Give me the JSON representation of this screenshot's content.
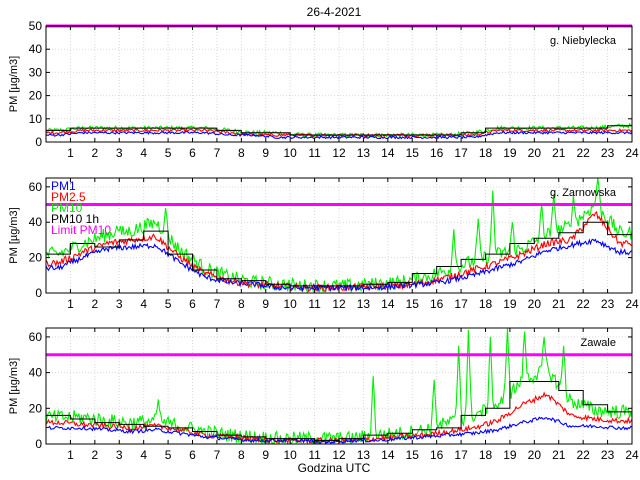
{
  "figure": {
    "title": "26-4-2021",
    "xlabel": "Godzina UTC"
  },
  "colors": {
    "pm1": "#0000ff",
    "pm25": "#ff0000",
    "pm10": "#00ee00",
    "pm10_1h": "#000000",
    "limit": "#ff00ff"
  },
  "chart_data": [
    {
      "type": "line",
      "station": "g. Niebylecka",
      "xlabel": "",
      "ylabel": "PM [µg/m3]",
      "xlim": [
        0,
        24
      ],
      "ylim": [
        0,
        50
      ],
      "xticks": [
        1,
        2,
        3,
        4,
        5,
        6,
        7,
        8,
        9,
        10,
        11,
        12,
        13,
        14,
        15,
        16,
        17,
        18,
        19,
        20,
        21,
        22,
        23,
        24
      ],
      "yticks": [
        0,
        10,
        20,
        30,
        40,
        50
      ],
      "grid": true,
      "legend": null,
      "limit_pm10": 50,
      "hours": [
        0.5,
        1.5,
        2.5,
        3.5,
        4.5,
        5.5,
        6.5,
        7.5,
        8.5,
        9.5,
        10.5,
        11.5,
        12.5,
        13.5,
        14.5,
        15.5,
        16.5,
        17.5,
        18.5,
        19.5,
        20.5,
        21.5,
        22.5,
        23.5
      ],
      "series": [
        {
          "name": "PM1",
          "values": [
            3,
            4,
            4,
            4,
            4,
            4,
            4,
            3,
            3,
            2,
            2,
            2,
            2,
            2,
            2,
            2,
            2,
            2,
            4,
            4,
            4,
            4,
            4,
            4
          ],
          "noise": 0.5,
          "spikes": []
        },
        {
          "name": "PM2.5",
          "values": [
            4,
            5,
            5,
            5,
            5,
            5,
            5,
            4,
            3,
            3,
            3,
            3,
            3,
            3,
            3,
            3,
            3,
            3,
            5,
            5,
            5,
            5,
            5,
            5
          ],
          "noise": 0.6,
          "spikes": []
        },
        {
          "name": "PM10",
          "values": [
            5,
            6,
            6,
            6,
            6,
            6,
            6,
            5,
            4,
            4,
            3,
            3,
            3,
            3,
            3,
            3,
            3,
            4,
            6,
            6,
            6,
            6,
            6,
            7
          ],
          "noise": 0.9,
          "spikes": []
        },
        {
          "name": "PM10 1h",
          "values": [
            5,
            6,
            6,
            6,
            6,
            6,
            6,
            5,
            4,
            4,
            3,
            3,
            3,
            3,
            3,
            3,
            3,
            4,
            6,
            6,
            6,
            6,
            6,
            7
          ]
        }
      ]
    },
    {
      "type": "line",
      "station": "g. Zarnowska",
      "xlabel": "",
      "ylabel": "PM [µg/m3]",
      "xlim": [
        0,
        24
      ],
      "ylim": [
        0,
        65
      ],
      "xticks": [
        1,
        2,
        3,
        4,
        5,
        6,
        7,
        8,
        9,
        10,
        11,
        12,
        13,
        14,
        15,
        16,
        17,
        18,
        19,
        20,
        21,
        22,
        23,
        24
      ],
      "yticks": [
        0,
        20,
        40,
        60
      ],
      "grid": true,
      "legend": {
        "placement": "top-left",
        "entries": [
          "PM1",
          "PM2.5",
          "PM10",
          "PM10 1h",
          "Limit PM10"
        ]
      },
      "limit_pm10": 50,
      "hours": [
        0.5,
        1.5,
        2.5,
        3.5,
        4.5,
        5.5,
        6.5,
        7.5,
        8.5,
        9.5,
        10.5,
        11.5,
        12.5,
        13.5,
        14.5,
        15.5,
        16.5,
        17.5,
        18.5,
        19.5,
        20.5,
        21.5,
        22.5,
        23.5
      ],
      "series": [
        {
          "name": "PM1",
          "values": [
            14,
            20,
            25,
            26,
            27,
            17,
            9,
            6,
            5,
            3,
            3,
            3,
            3,
            3,
            4,
            5,
            7,
            10,
            14,
            18,
            24,
            27,
            30,
            23
          ],
          "noise": 1.5,
          "spikes": []
        },
        {
          "name": "PM2.5",
          "values": [
            17,
            23,
            28,
            30,
            32,
            20,
            11,
            7,
            5,
            4,
            3,
            3,
            3,
            4,
            4,
            6,
            9,
            13,
            17,
            22,
            28,
            30,
            45,
            28
          ],
          "noise": 2,
          "spikes": []
        },
        {
          "name": "PM10",
          "values": [
            22,
            28,
            33,
            35,
            40,
            24,
            14,
            9,
            6,
            5,
            4,
            4,
            4,
            5,
            6,
            9,
            13,
            18,
            22,
            25,
            33,
            38,
            50,
            34
          ],
          "noise": 4,
          "spikes": [
            [
              2.9,
              38
            ],
            [
              4.9,
              48
            ],
            [
              16.7,
              36
            ],
            [
              17.7,
              42
            ],
            [
              18.3,
              58
            ],
            [
              19.1,
              40
            ],
            [
              20.3,
              50
            ],
            [
              20.8,
              56
            ],
            [
              21.6,
              55
            ],
            [
              22.6,
              66
            ]
          ]
        },
        {
          "name": "PM10 1h",
          "values": [
            22,
            28,
            26,
            30,
            35,
            22,
            13,
            8,
            7,
            5,
            4,
            4,
            4,
            5,
            6,
            11,
            15,
            19,
            22,
            28,
            31,
            34,
            40,
            33
          ]
        }
      ]
    },
    {
      "type": "line",
      "station": "Zawale",
      "xlabel": "Godzina UTC",
      "ylabel": "PM [µg/m3]",
      "xlim": [
        0,
        24
      ],
      "ylim": [
        0,
        65
      ],
      "xticks": [
        1,
        2,
        3,
        4,
        5,
        6,
        7,
        8,
        9,
        10,
        11,
        12,
        13,
        14,
        15,
        16,
        17,
        18,
        19,
        20,
        21,
        22,
        23,
        24
      ],
      "yticks": [
        0,
        20,
        40,
        60
      ],
      "grid": true,
      "legend": null,
      "limit_pm10": 50,
      "hours": [
        0.5,
        1.5,
        2.5,
        3.5,
        4.5,
        5.5,
        6.5,
        7.5,
        8.5,
        9.5,
        10.5,
        11.5,
        12.5,
        13.5,
        14.5,
        15.5,
        16.5,
        17.5,
        18.5,
        19.5,
        20.5,
        21.5,
        22.5,
        23.5
      ],
      "series": [
        {
          "name": "PM1",
          "values": [
            9,
            9,
            8,
            7,
            8,
            6,
            4,
            3,
            2,
            2,
            2,
            1,
            2,
            2,
            3,
            4,
            5,
            6,
            8,
            12,
            15,
            10,
            10,
            9
          ],
          "noise": 1,
          "spikes": []
        },
        {
          "name": "PM2.5",
          "values": [
            12,
            11,
            10,
            9,
            10,
            8,
            5,
            4,
            3,
            2,
            2,
            2,
            2,
            3,
            4,
            5,
            7,
            9,
            13,
            22,
            28,
            16,
            14,
            13
          ],
          "noise": 1.5,
          "spikes": []
        },
        {
          "name": "PM10",
          "values": [
            15,
            15,
            13,
            12,
            13,
            10,
            7,
            5,
            4,
            3,
            3,
            3,
            3,
            5,
            6,
            8,
            12,
            16,
            22,
            35,
            42,
            24,
            19,
            18
          ],
          "noise": 4,
          "spikes": [
            [
              4.6,
              25
            ],
            [
              13.4,
              38
            ],
            [
              15.9,
              36
            ],
            [
              16.9,
              55
            ],
            [
              17.3,
              64
            ],
            [
              18.2,
              60
            ],
            [
              18.9,
              65
            ],
            [
              19.6,
              63
            ],
            [
              20.4,
              60
            ],
            [
              21.2,
              55
            ]
          ]
        },
        {
          "name": "PM10 1h",
          "values": [
            16,
            14,
            12,
            11,
            10,
            9,
            7,
            5,
            4,
            3,
            3,
            2,
            3,
            5,
            6,
            8,
            9,
            16,
            20,
            35,
            35,
            30,
            22,
            18
          ]
        }
      ]
    }
  ]
}
